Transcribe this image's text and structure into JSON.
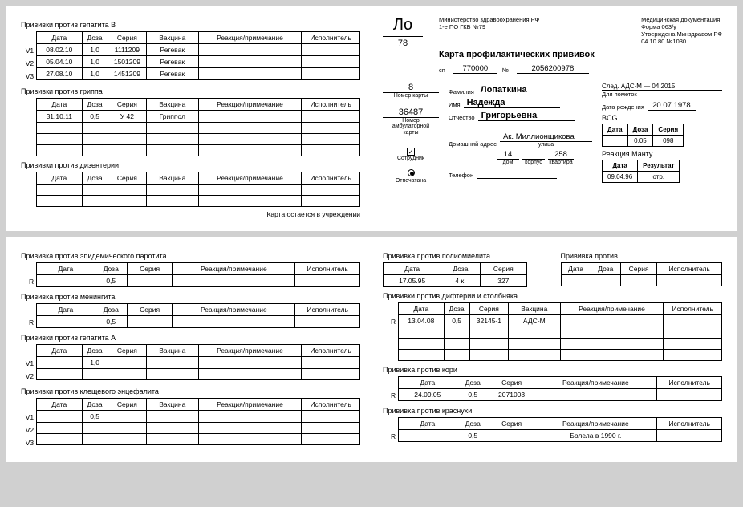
{
  "sheet1": {
    "left": {
      "hepB": {
        "title": "Прививки против гепатита B",
        "cols": [
          "Дата",
          "Доза",
          "Серия",
          "Вакцина",
          "Реакция/примечание",
          "Исполнитель"
        ],
        "rowLabels": [
          "V1",
          "V2",
          "V3"
        ],
        "rows": [
          [
            "08.02.10",
            "1,0",
            "1111209",
            "Регевак",
            "",
            ""
          ],
          [
            "05.04.10",
            "1,0",
            "1501209",
            "Регевак",
            "",
            ""
          ],
          [
            "27.08.10",
            "1,0",
            "1451209",
            "Регевак",
            "",
            ""
          ]
        ]
      },
      "flu": {
        "title": "Прививки против гриппа",
        "cols": [
          "Дата",
          "Доза",
          "Серия",
          "Вакцина",
          "Реакция/примечание",
          "Исполнитель"
        ],
        "rows": [
          [
            "31.10.11",
            "0,5",
            "У 42",
            "Гриппол",
            "",
            ""
          ],
          [
            "",
            "",
            "",
            "",
            "",
            ""
          ],
          [
            "",
            "",
            "",
            "",
            "",
            ""
          ],
          [
            "",
            "",
            "",
            "",
            "",
            ""
          ]
        ]
      },
      "dys": {
        "title": "Прививки против дизентерии",
        "cols": [
          "Дата",
          "Доза",
          "Серия",
          "Вакцина",
          "Реакция/примечание",
          "Исполнитель"
        ],
        "rows": [
          [
            "",
            "",
            "",
            "",
            "",
            ""
          ],
          [
            "",
            "",
            "",
            "",
            "",
            ""
          ]
        ]
      },
      "footer": "Карта остается в учреждении"
    },
    "right": {
      "surname_prefix": "Ло",
      "surname_code": "78",
      "ministry_lines": [
        "Министерство здравоохранения РФ",
        "1-е ПО ГКБ №79"
      ],
      "docmeta_lines": [
        "Медицинская документация",
        "Форма 063/у",
        "Утверждена Минздравом РФ",
        "04.10.80 №1030"
      ],
      "card_title": "Карта профилактических прививок",
      "sp_label": "сп",
      "sp_val": "770000",
      "num_label": "№",
      "num_val": "2056200978",
      "card_num": "8",
      "card_num_label": "Номер карты",
      "amb_num": "36487",
      "amb_label": "Номер\nамбулаторной\nкарты",
      "fam_label": "Фамилия",
      "fam_val": "Лопаткина",
      "name_label": "Имя",
      "name_val": "Надежда",
      "patr_label": "Отчество",
      "patr_val": "Григорьевна",
      "dob_label": "Дата рождения",
      "dob_val": "20.07.1978",
      "next_label": "След. АДС-М — 04.2015",
      "notes_label": "Для пометок",
      "addr_label": "Домашний адрес",
      "addr_street": "Ак. Миллионщикова",
      "addr_street_sub": "улица",
      "addr_house": "14",
      "addr_house_sub": "дом",
      "addr_korp": "",
      "addr_korp_sub": "корпус",
      "addr_flat": "258",
      "addr_flat_sub": "квартира",
      "employee_label": "Сотрудник",
      "printed_label": "Отпечатана",
      "phone_label": "Телефон",
      "bcg": {
        "title": "BCG",
        "cols": [
          "Дата",
          "Доза",
          "Серия"
        ],
        "row": [
          "",
          "0.05",
          "098"
        ]
      },
      "mantu": {
        "title": "Реакция Манту",
        "cols": [
          "Дата",
          "Результат"
        ],
        "row": [
          "09.04.96",
          "отр."
        ]
      }
    }
  },
  "sheet2": {
    "left": {
      "parotit": {
        "title": "Прививка против эпидемического паротита",
        "cols": [
          "Дата",
          "Доза",
          "Серия",
          "Реакция/примечание",
          "Исполнитель"
        ],
        "rowLabel": "R",
        "row": [
          "",
          "0,5",
          "",
          "",
          ""
        ]
      },
      "mening": {
        "title": "Прививка против менингита",
        "cols": [
          "Дата",
          "Доза",
          "Серия",
          "Реакция/примечание",
          "Исполнитель"
        ],
        "rowLabel": "R",
        "row": [
          "",
          "0,5",
          "",
          "",
          ""
        ]
      },
      "hepA": {
        "title": "Прививки против гепатита A",
        "cols": [
          "Дата",
          "Доза",
          "Серия",
          "Вакцина",
          "Реакция/примечание",
          "Исполнитель"
        ],
        "rowLabels": [
          "V1",
          "V2"
        ],
        "rows": [
          [
            "",
            "1,0",
            "",
            "",
            "",
            ""
          ],
          [
            "",
            "",
            "",
            "",
            "",
            ""
          ]
        ]
      },
      "tick": {
        "title": "Прививки против клещевого энцефалита",
        "cols": [
          "Дата",
          "Доза",
          "Серия",
          "Вакцина",
          "Реакция/примечание",
          "Исполнитель"
        ],
        "rowLabels": [
          "V1",
          "V2",
          "V3"
        ],
        "rows": [
          [
            "",
            "0,5",
            "",
            "",
            "",
            ""
          ],
          [
            "",
            "",
            "",
            "",
            "",
            ""
          ],
          [
            "",
            "",
            "",
            "",
            "",
            ""
          ]
        ]
      }
    },
    "right": {
      "polio": {
        "title": "Прививка против полиомиелита",
        "cols": [
          "Дата",
          "Доза",
          "Серия"
        ],
        "row": [
          "17.05.95",
          "4 к.",
          "327"
        ]
      },
      "custom": {
        "title": "Прививка против",
        "cols": [
          "Дата",
          "Доза",
          "Серия",
          "Исполнитель"
        ],
        "row": [
          "",
          "",
          "",
          ""
        ]
      },
      "dipht": {
        "title": "Прививки против дифтерии и столбняка",
        "cols": [
          "Дата",
          "Доза",
          "Серия",
          "Вакцина",
          "Реакция/примечание",
          "Исполнитель"
        ],
        "rowLabel": "R",
        "rows": [
          [
            "13.04.08",
            "0,5",
            "32145-1",
            "АДС-М",
            "",
            ""
          ],
          [
            "",
            "",
            "",
            "",
            "",
            ""
          ],
          [
            "",
            "",
            "",
            "",
            "",
            ""
          ],
          [
            "",
            "",
            "",
            "",
            "",
            ""
          ]
        ]
      },
      "measles": {
        "title": "Прививка против кори",
        "cols": [
          "Дата",
          "Доза",
          "Серия",
          "Реакция/примечание",
          "Исполнитель"
        ],
        "rowLabel": "R",
        "row": [
          "24.09.05",
          "0,5",
          "2071003",
          "",
          ""
        ]
      },
      "rubella": {
        "title": "Прививка против краснухи",
        "cols": [
          "Дата",
          "Доза",
          "Серия",
          "Реакция/примечание",
          "Исполнитель"
        ],
        "rowLabel": "R",
        "row": [
          "",
          "0,5",
          "",
          "Болела в 1990 г.",
          ""
        ]
      }
    }
  },
  "colWidths6": [
    "14%",
    "8%",
    "12%",
    "16%",
    "32%",
    "18%"
  ],
  "colWidths5": [
    "18%",
    "10%",
    "14%",
    "38%",
    "20%"
  ]
}
